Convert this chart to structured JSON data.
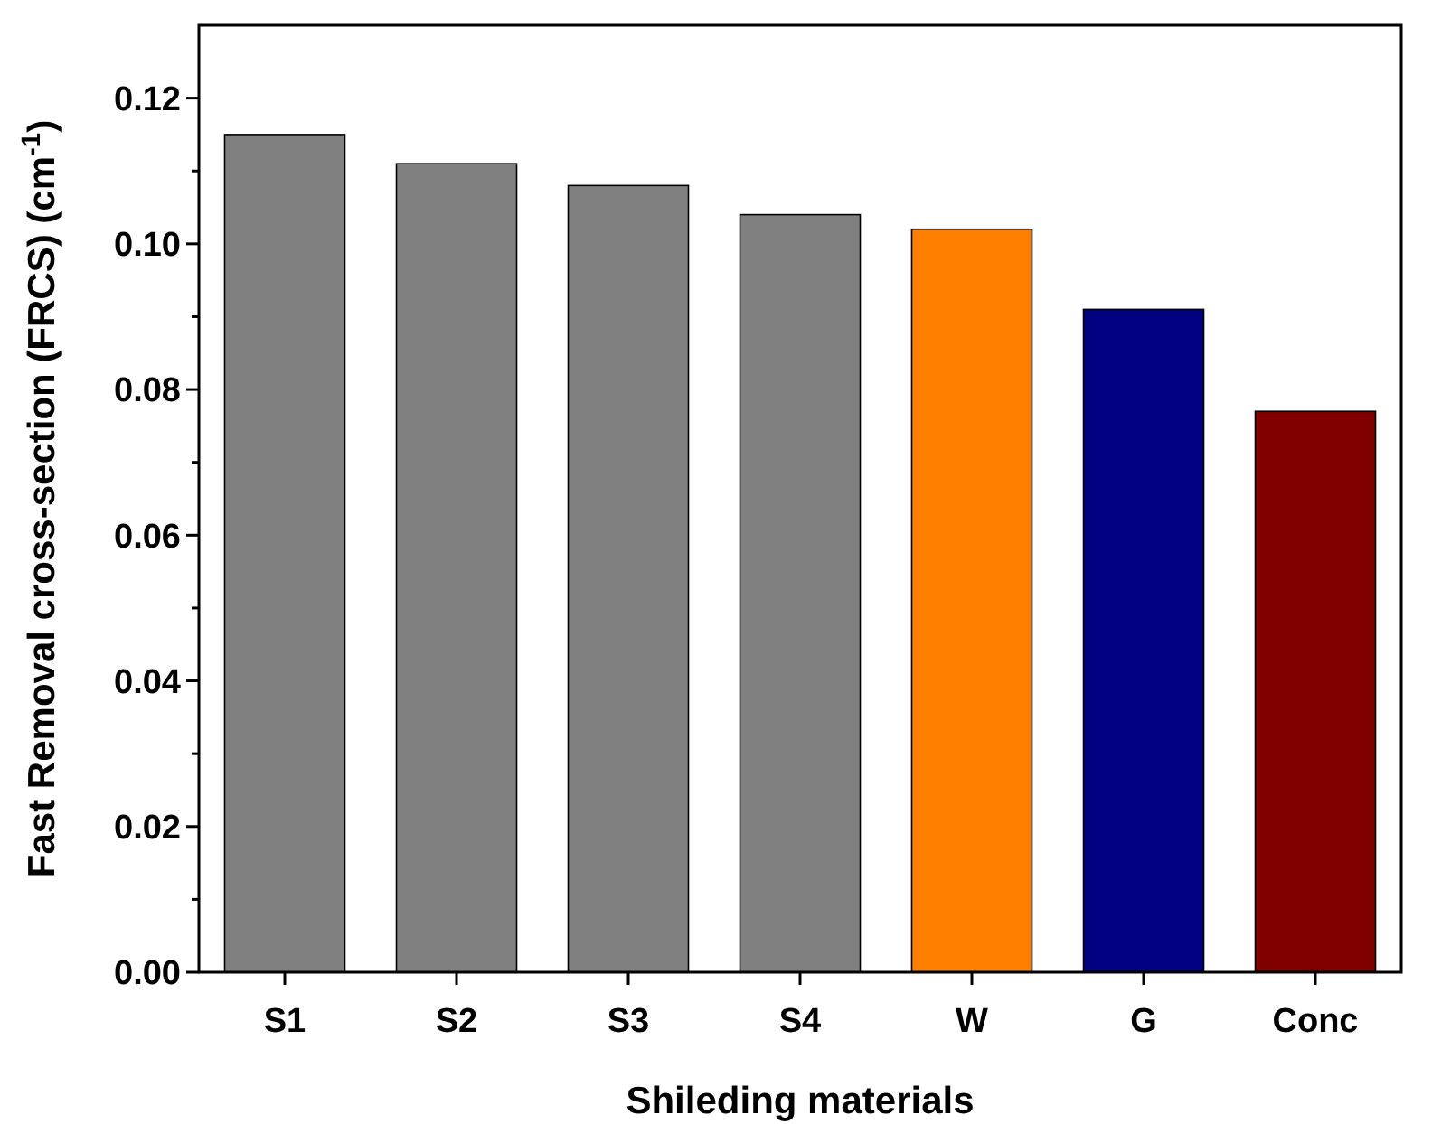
{
  "chart_data": {
    "type": "bar",
    "xlabel": "Shileding materials",
    "ylabel": "Fast Removal cross-section (FRCS) (cm$^{-1}$)",
    "categories": [
      "S1",
      "S2",
      "S3",
      "S4",
      "W",
      "G",
      "Conc"
    ],
    "values": [
      0.115,
      0.111,
      0.108,
      0.104,
      0.102,
      0.091,
      0.077
    ],
    "colors": [
      "#808080",
      "#808080",
      "#808080",
      "#808080",
      "#ff8000",
      "#000080",
      "#800000"
    ],
    "ylim": [
      0,
      0.13
    ],
    "yticks": [
      {
        "value": 0,
        "label": "0.00"
      },
      {
        "value": 0.01,
        "label": null
      },
      {
        "value": 0.02,
        "label": "0.02"
      },
      {
        "value": 0.03,
        "label": null
      },
      {
        "value": 0.04,
        "label": "0.04"
      },
      {
        "value": 0.05,
        "label": null
      },
      {
        "value": 0.06,
        "label": "0.06"
      },
      {
        "value": 0.07,
        "label": null
      },
      {
        "value": 0.08,
        "label": "0.08"
      },
      {
        "value": 0.09,
        "label": null
      },
      {
        "value": 0.1,
        "label": "0.10"
      },
      {
        "value": 0.11,
        "label": null
      },
      {
        "value": 0.12,
        "label": "0.12"
      }
    ],
    "grid": false
  }
}
